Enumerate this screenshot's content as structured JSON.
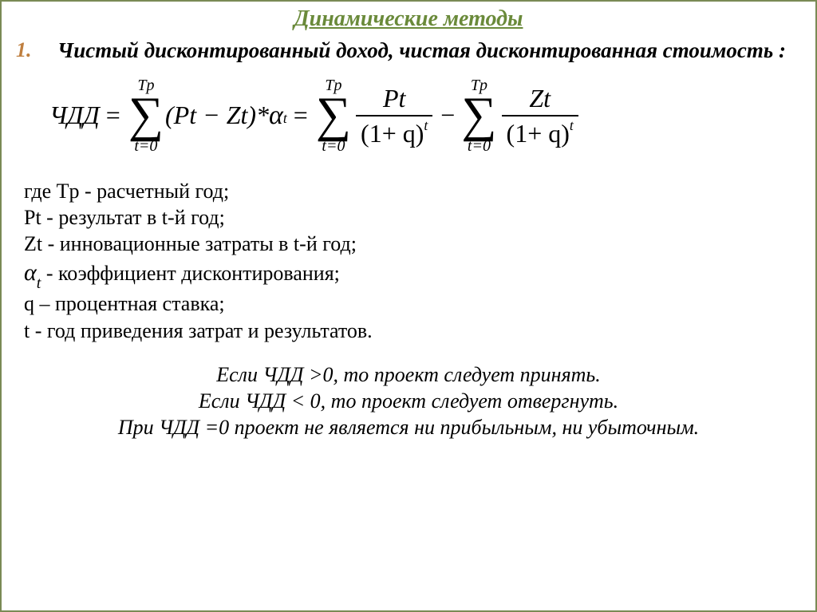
{
  "colors": {
    "border": "#7a8a55",
    "title": "#6a8a3a",
    "list_number": "#bf7f3f",
    "text": "#000000",
    "background": "#ffffff"
  },
  "title": "Динамические методы",
  "list_number": "1.",
  "definition": "Чистый дисконтированный доход, чистая дисконтированная стоимость :",
  "formula": {
    "lhs": "ЧДД",
    "sum_upper": "Tp",
    "sum_lower": "t=0",
    "term1_inner": "(Pt − Zt)*",
    "alpha": "α",
    "alpha_sub": "t",
    "frac1_num": "Pt",
    "frac2_num": "Zt",
    "den_base": "(1+ q)",
    "den_exp": "t"
  },
  "where": {
    "line1": "где Tp - расчетный год;",
    "line2": "Pt - результат в t-й  год;",
    "line3": "Zt - инновационные затраты в t-й год;",
    "line4_symbol": "α",
    "line4_sub": "t",
    "line4_rest": "- коэффициент дисконтирования;",
    "line5": "q – процентная ставка;",
    "line6": "t - год приведения затрат и результатов."
  },
  "conclusions": {
    "c1": "Если ЧДД >0, то проект следует принять.",
    "c2": "Если ЧДД < 0, то проект следует отвергнуть.",
    "c3": "При ЧДД =0 проект не является ни прибыльным, ни убыточным."
  }
}
